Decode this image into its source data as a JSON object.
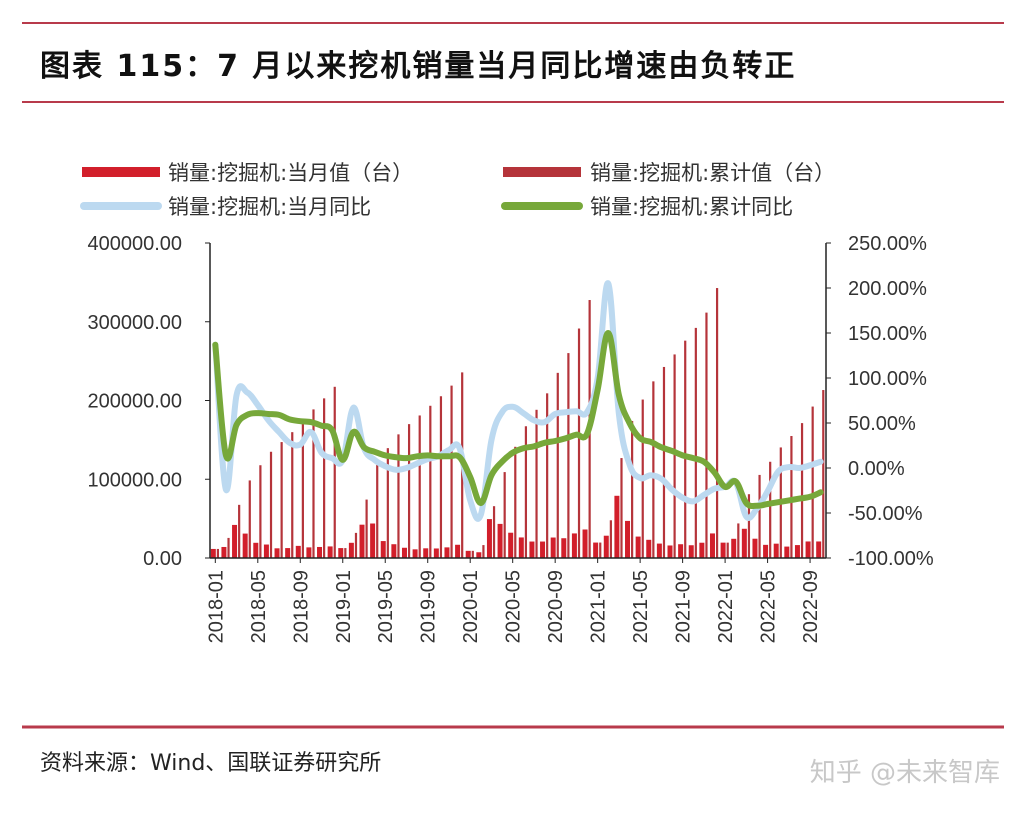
{
  "title": "图表 115：7 月以来挖机销量当月同比增速由负转正",
  "source": "资料来源：Wind、国联证券研究所",
  "watermark": "知乎 @未来智库",
  "colors": {
    "rule": "#b83a4b",
    "monthly_bar": "#d21f2b",
    "cumulative_bar": "#b5343a",
    "monthly_yoy": "#bcd9f0",
    "cumulative_yoy": "#77a83a"
  },
  "chart_data": {
    "type": "bar+line",
    "legend_position": "top",
    "grid": false,
    "categories": [
      "2018-01",
      "2018-02",
      "2018-03",
      "2018-04",
      "2018-05",
      "2018-06",
      "2018-07",
      "2018-08",
      "2018-09",
      "2018-10",
      "2018-11",
      "2018-12",
      "2019-01",
      "2019-02",
      "2019-03",
      "2019-04",
      "2019-05",
      "2019-06",
      "2019-07",
      "2019-08",
      "2019-09",
      "2019-10",
      "2019-11",
      "2019-12",
      "2020-01",
      "2020-02",
      "2020-03",
      "2020-04",
      "2020-05",
      "2020-06",
      "2020-07",
      "2020-08",
      "2020-09",
      "2020-10",
      "2020-11",
      "2020-12",
      "2021-01",
      "2021-02",
      "2021-03",
      "2021-04",
      "2021-05",
      "2021-06",
      "2021-07",
      "2021-08",
      "2021-09",
      "2021-10",
      "2021-11",
      "2021-12",
      "2022-01",
      "2022-02",
      "2022-03",
      "2022-04",
      "2022-05",
      "2022-06",
      "2022-07",
      "2022-08",
      "2022-09",
      "2022-10"
    ],
    "x_tick_labels": [
      "2018-01",
      "2018-05",
      "2018-09",
      "2019-01",
      "2019-05",
      "2019-09",
      "2020-01",
      "2020-05",
      "2020-09",
      "2021-01",
      "2021-05",
      "2021-09",
      "2022-01",
      "2022-05",
      "2022-09"
    ],
    "y_left": {
      "range": [
        0,
        400000
      ],
      "ticks": [
        "0.00",
        "100000.00",
        "200000.00",
        "300000.00",
        "400000.00"
      ],
      "tick_values": [
        0,
        100000,
        200000,
        300000,
        400000
      ]
    },
    "y_right": {
      "range": [
        -100,
        250
      ],
      "unit": "%",
      "ticks": [
        "-100.00%",
        "-50.00%",
        "0.00%",
        "50.00%",
        "100.00%",
        "150.00%",
        "200.00%",
        "250.00%"
      ],
      "tick_values": [
        -100,
        -50,
        0,
        50,
        100,
        150,
        200,
        250
      ]
    },
    "series": [
      {
        "name": "销量:挖掘机:当月值（台）",
        "type": "bar",
        "axis": "left",
        "values": [
          11500,
          14000,
          42000,
          31000,
          19300,
          17100,
          12300,
          12600,
          15400,
          13500,
          14000,
          14700,
          12600,
          19300,
          42300,
          43800,
          21500,
          17500,
          13000,
          11000,
          12300,
          12100,
          13500,
          16800,
          9100,
          7300,
          49400,
          43300,
          32100,
          26100,
          20900,
          20900,
          26000,
          25100,
          31200,
          36200,
          19600,
          28300,
          79000,
          47100,
          27200,
          23100,
          18300,
          15900,
          17500,
          16200,
          19400,
          31200,
          19500,
          24400,
          37100,
          24500,
          16700,
          18200,
          14500,
          16400,
          21000,
          21000
        ]
      },
      {
        "name": "销量:挖掘机:累计值（台）",
        "type": "bar",
        "axis": "left",
        "values": [
          11500,
          25500,
          67500,
          98500,
          117800,
          134900,
          147200,
          159800,
          175200,
          188700,
          202700,
          217400,
          12600,
          31900,
          74200,
          118000,
          139500,
          157000,
          170000,
          181000,
          193300,
          205400,
          218900,
          235700,
          9100,
          16400,
          65800,
          109100,
          141200,
          167300,
          188200,
          209100,
          235100,
          260200,
          291400,
          327600,
          19600,
          47900,
          126900,
          174000,
          201200,
          224300,
          242600,
          258500,
          276000,
          292200,
          311600,
          342800,
          19500,
          43900,
          81000,
          105500,
          122200,
          140400,
          154900,
          171300,
          192300,
          213300
        ]
      },
      {
        "name": "销量:挖掘机:当月同比",
        "type": "line",
        "axis": "right",
        "values": [
          137,
          -24,
          81,
          84,
          70,
          53,
          40,
          28,
          26,
          40,
          17,
          11,
          9,
          67,
          22,
          9,
          2,
          -2,
          0,
          5,
          10,
          13,
          20,
          22,
          -36,
          -52,
          31,
          62,
          68,
          61,
          53,
          51,
          60,
          62,
          63,
          62,
          100,
          205,
          60,
          4,
          -11,
          -8,
          -12,
          -24,
          -33,
          -37,
          -30,
          -23,
          -21,
          -16,
          -54,
          -45,
          -26,
          -4,
          1,
          0,
          3,
          7
        ]
      },
      {
        "name": "销量:挖掘机:累计同比",
        "type": "line",
        "axis": "right",
        "values": [
          137,
          14,
          48,
          59,
          61,
          60,
          59,
          54,
          52,
          51,
          47,
          42,
          9,
          40,
          23,
          18,
          14,
          12,
          11,
          13,
          14,
          13,
          13,
          12,
          -10,
          -39,
          -8,
          7,
          17,
          22,
          24,
          28,
          30,
          33,
          37,
          38,
          87,
          150,
          81,
          50,
          33,
          29,
          23,
          19,
          14,
          11,
          7,
          -5,
          -21,
          -15,
          -39,
          -42,
          -40,
          -38,
          -36,
          -34,
          -32,
          -27
        ]
      }
    ]
  }
}
